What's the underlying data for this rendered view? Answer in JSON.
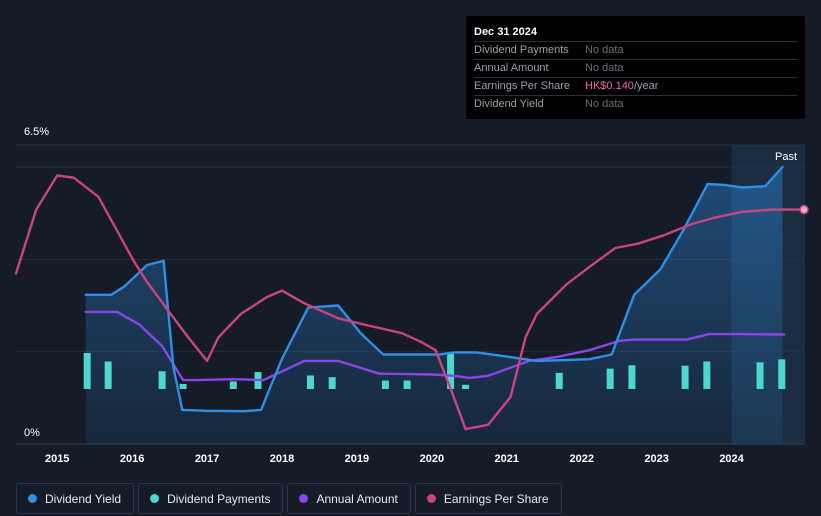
{
  "tooltip": {
    "date": "Dec 31 2024",
    "rows": [
      {
        "label": "Dividend Payments",
        "value": "No data"
      },
      {
        "label": "Annual Amount",
        "value": "No data"
      },
      {
        "label": "Earnings Per Share",
        "value": "HK$0.140",
        "unit": "/year"
      },
      {
        "label": "Dividend Yield",
        "value": "No data"
      }
    ]
  },
  "legend": [
    {
      "label": "Dividend Yield",
      "color": "#2e8fe6"
    },
    {
      "label": "Dividend Payments",
      "color": "#4fd6cf"
    },
    {
      "label": "Annual Amount",
      "color": "#8b45e6"
    },
    {
      "label": "Earnings Per Share",
      "color": "#c8457f"
    }
  ],
  "chart_data": {
    "type": "line",
    "y_top_label": "6.5%",
    "y_bottom_label": "0%",
    "ylim": [
      0,
      6.5
    ],
    "xlim": [
      2014.45,
      2024.98
    ],
    "xticks": [
      2015,
      2016,
      2017,
      2018,
      2019,
      2020,
      2021,
      2022,
      2023,
      2024
    ],
    "past_label": "Past",
    "past_region": [
      2024.0,
      2024.98
    ],
    "series": [
      {
        "name": "Dividend Yield",
        "color": "#2e8fe6",
        "fill": true,
        "points": [
          [
            2015.38,
            3.5
          ],
          [
            2015.72,
            3.5
          ],
          [
            2015.9,
            3.7
          ],
          [
            2016.2,
            4.2
          ],
          [
            2016.42,
            4.3
          ],
          [
            2016.55,
            1.8
          ],
          [
            2016.67,
            0.8
          ],
          [
            2017.0,
            0.78
          ],
          [
            2017.5,
            0.77
          ],
          [
            2017.72,
            0.8
          ],
          [
            2018.0,
            2.0
          ],
          [
            2018.35,
            3.2
          ],
          [
            2018.75,
            3.25
          ],
          [
            2019.05,
            2.6
          ],
          [
            2019.35,
            2.1
          ],
          [
            2019.7,
            2.1
          ],
          [
            2020.1,
            2.1
          ],
          [
            2020.3,
            2.15
          ],
          [
            2020.6,
            2.15
          ],
          [
            2021.0,
            2.05
          ],
          [
            2021.4,
            1.95
          ],
          [
            2021.8,
            1.97
          ],
          [
            2022.1,
            1.99
          ],
          [
            2022.4,
            2.1
          ],
          [
            2022.7,
            3.5
          ],
          [
            2023.05,
            4.1
          ],
          [
            2023.35,
            5.0
          ],
          [
            2023.68,
            6.1
          ],
          [
            2023.9,
            6.08
          ],
          [
            2024.15,
            6.02
          ],
          [
            2024.45,
            6.05
          ],
          [
            2024.68,
            6.5
          ]
        ]
      },
      {
        "name": "Annual Amount",
        "color": "#8b45e6",
        "points": [
          [
            2015.38,
            3.1
          ],
          [
            2015.8,
            3.1
          ],
          [
            2016.1,
            2.8
          ],
          [
            2016.4,
            2.3
          ],
          [
            2016.68,
            1.5
          ],
          [
            2016.85,
            1.5
          ],
          [
            2017.35,
            1.52
          ],
          [
            2017.75,
            1.5
          ],
          [
            2018.3,
            1.95
          ],
          [
            2018.75,
            1.95
          ],
          [
            2019.3,
            1.65
          ],
          [
            2019.7,
            1.64
          ],
          [
            2020.0,
            1.63
          ],
          [
            2020.3,
            1.6
          ],
          [
            2020.5,
            1.55
          ],
          [
            2020.75,
            1.6
          ],
          [
            2021.3,
            1.95
          ],
          [
            2021.7,
            2.05
          ],
          [
            2022.1,
            2.2
          ],
          [
            2022.5,
            2.42
          ],
          [
            2022.7,
            2.45
          ],
          [
            2023.4,
            2.45
          ],
          [
            2023.7,
            2.58
          ],
          [
            2024.2,
            2.58
          ],
          [
            2024.7,
            2.57
          ]
        ]
      },
      {
        "name": "Earnings Per Share",
        "color": "#c8457f",
        "points": [
          [
            2014.45,
            4.0
          ],
          [
            2014.72,
            5.5
          ],
          [
            2015.0,
            6.3
          ],
          [
            2015.22,
            6.25
          ],
          [
            2015.55,
            5.8
          ],
          [
            2015.8,
            5.0
          ],
          [
            2016.02,
            4.3
          ],
          [
            2016.2,
            3.8
          ],
          [
            2016.45,
            3.2
          ],
          [
            2016.75,
            2.5
          ],
          [
            2017.0,
            1.95
          ],
          [
            2017.15,
            2.5
          ],
          [
            2017.45,
            3.05
          ],
          [
            2017.8,
            3.45
          ],
          [
            2018.0,
            3.6
          ],
          [
            2018.3,
            3.3
          ],
          [
            2018.75,
            2.95
          ],
          [
            2019.15,
            2.78
          ],
          [
            2019.6,
            2.6
          ],
          [
            2019.85,
            2.4
          ],
          [
            2020.05,
            2.2
          ],
          [
            2020.25,
            1.3
          ],
          [
            2020.45,
            0.35
          ],
          [
            2020.75,
            0.45
          ],
          [
            2021.05,
            1.1
          ],
          [
            2021.25,
            2.5
          ],
          [
            2021.4,
            3.05
          ],
          [
            2021.6,
            3.4
          ],
          [
            2021.8,
            3.75
          ],
          [
            2022.1,
            4.15
          ],
          [
            2022.45,
            4.6
          ],
          [
            2022.75,
            4.7
          ],
          [
            2023.1,
            4.9
          ],
          [
            2023.45,
            5.15
          ],
          [
            2023.75,
            5.3
          ],
          [
            2024.15,
            5.45
          ],
          [
            2024.55,
            5.5
          ],
          [
            2024.98,
            5.5
          ]
        ]
      }
    ],
    "bars": {
      "name": "Dividend Payments",
      "color": "#4fd6cf",
      "points": [
        [
          2015.4,
          0.85
        ],
        [
          2015.68,
          0.65
        ],
        [
          2016.4,
          0.42
        ],
        [
          2016.68,
          0.12
        ],
        [
          2017.35,
          0.18
        ],
        [
          2017.68,
          0.4
        ],
        [
          2018.38,
          0.32
        ],
        [
          2018.67,
          0.28
        ],
        [
          2019.38,
          0.2
        ],
        [
          2019.67,
          0.2
        ],
        [
          2020.25,
          0.85
        ],
        [
          2020.45,
          0.1
        ],
        [
          2021.7,
          0.38
        ],
        [
          2022.38,
          0.48
        ],
        [
          2022.67,
          0.56
        ],
        [
          2023.38,
          0.55
        ],
        [
          2023.67,
          0.65
        ],
        [
          2024.38,
          0.63
        ],
        [
          2024.67,
          0.7
        ]
      ]
    }
  }
}
